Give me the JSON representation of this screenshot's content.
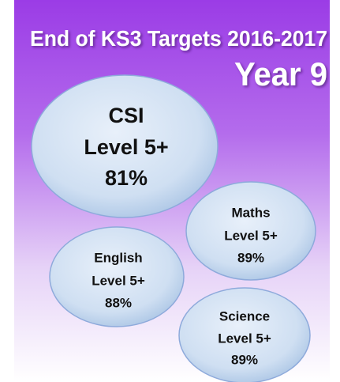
{
  "header": {
    "title": "End of KS3 Targets 2016-2017",
    "subtitle": "Year 9"
  },
  "bubbles": [
    {
      "subject": "CSI",
      "level": "Level 5+",
      "target": "81%"
    },
    {
      "subject": "Maths",
      "level": "Level 5+",
      "target": "89%"
    },
    {
      "subject": "English",
      "level": "Level 5+",
      "target": "88%"
    },
    {
      "subject": "Science",
      "level": "Level 5+",
      "target": "89%"
    }
  ]
}
